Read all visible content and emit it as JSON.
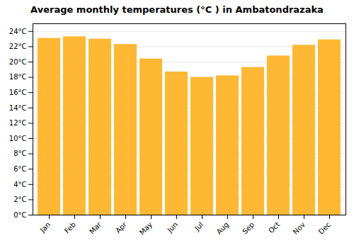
{
  "chart_data": {
    "type": "bar",
    "title": "Average monthly temperatures (°C ) in Ambatondrazaka",
    "categories": [
      "Jan",
      "Feb",
      "Mar",
      "Apr",
      "May",
      "Jun",
      "Jul",
      "Aug",
      "Sep",
      "Oct",
      "Nov",
      "Dec"
    ],
    "values": [
      23.1,
      23.3,
      23.0,
      22.3,
      20.4,
      18.7,
      18.0,
      18.2,
      19.3,
      20.8,
      22.2,
      22.9
    ],
    "color": "#FFB833",
    "ylim": [
      0,
      25
    ],
    "yticks": [
      {
        "value": 0,
        "label": "0°C"
      },
      {
        "value": 2,
        "label": "2°C"
      },
      {
        "value": 4,
        "label": "4°C"
      },
      {
        "value": 6,
        "label": "6°C"
      },
      {
        "value": 8,
        "label": "8°C"
      },
      {
        "value": 10,
        "label": "10°C"
      },
      {
        "value": 12,
        "label": "12°C"
      },
      {
        "value": 14,
        "label": "14°C"
      },
      {
        "value": 16,
        "label": "16°C"
      },
      {
        "value": 18,
        "label": "18°C"
      },
      {
        "value": 20,
        "label": "20°C"
      },
      {
        "value": 22,
        "label": "22°C"
      },
      {
        "value": 24,
        "label": "24°C"
      }
    ],
    "grid": true
  }
}
